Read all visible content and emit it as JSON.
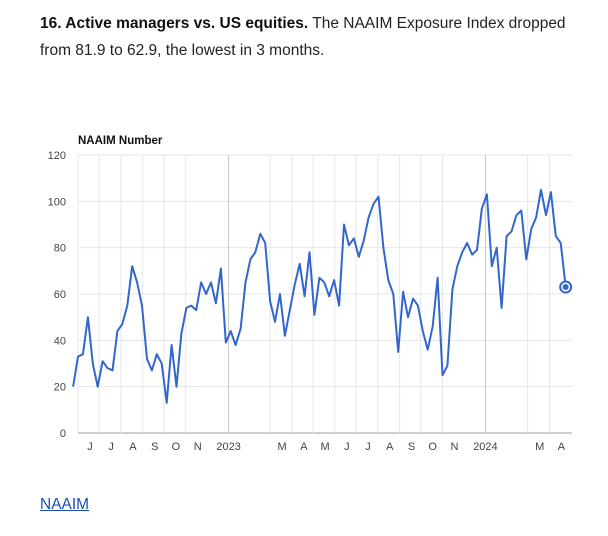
{
  "caption": {
    "bold": "16. Active managers vs. US equities.",
    "text": "The NAAIM Exposure Index dropped from 81.9 to 62.9, the lowest in 3 months."
  },
  "source_link": "NAAIM",
  "colors": {
    "line": "#3366cc",
    "grid": "#e6e6e6",
    "year_grid": "#c8c8c8",
    "axis_text": "#444444"
  },
  "chart_data": {
    "type": "line",
    "ylabel": "NAAIM Number",
    "ylim": [
      0,
      120
    ],
    "yticks": [
      0,
      20,
      40,
      60,
      80,
      100,
      120
    ],
    "x_start": "2022-06-01",
    "x_end": "2024-05-03",
    "xtick_labels": [
      {
        "date": "2022-06-01",
        "label": "J",
        "year": false
      },
      {
        "date": "2022-07-01",
        "label": "J",
        "year": false
      },
      {
        "date": "2022-08-01",
        "label": "A",
        "year": false
      },
      {
        "date": "2022-09-01",
        "label": "S",
        "year": false
      },
      {
        "date": "2022-10-01",
        "label": "O",
        "year": false
      },
      {
        "date": "2022-11-01",
        "label": "N",
        "year": false
      },
      {
        "date": "2023-01-01",
        "label": "2023",
        "year": true
      },
      {
        "date": "2023-03-01",
        "label": "M",
        "year": false
      },
      {
        "date": "2023-04-01",
        "label": "A",
        "year": false
      },
      {
        "date": "2023-05-01",
        "label": "M",
        "year": false
      },
      {
        "date": "2023-06-01",
        "label": "J",
        "year": false
      },
      {
        "date": "2023-07-01",
        "label": "J",
        "year": false
      },
      {
        "date": "2023-08-01",
        "label": "A",
        "year": false
      },
      {
        "date": "2023-09-01",
        "label": "S",
        "year": false
      },
      {
        "date": "2023-10-01",
        "label": "O",
        "year": false
      },
      {
        "date": "2023-11-01",
        "label": "N",
        "year": false
      },
      {
        "date": "2024-01-01",
        "label": "2024",
        "year": true
      },
      {
        "date": "2024-03-01",
        "label": "M",
        "year": false
      },
      {
        "date": "2024-04-01",
        "label": "A",
        "year": false
      }
    ],
    "series": [
      {
        "highlight_last_point": true,
        "values": [
          [
            "2022-05-25",
            20
          ],
          [
            "2022-06-01",
            33
          ],
          [
            "2022-06-08",
            34
          ],
          [
            "2022-06-15",
            50
          ],
          [
            "2022-06-22",
            30
          ],
          [
            "2022-06-29",
            20
          ],
          [
            "2022-07-06",
            31
          ],
          [
            "2022-07-13",
            28
          ],
          [
            "2022-07-20",
            27
          ],
          [
            "2022-07-27",
            44
          ],
          [
            "2022-08-03",
            47
          ],
          [
            "2022-08-10",
            55
          ],
          [
            "2022-08-17",
            72
          ],
          [
            "2022-08-24",
            65
          ],
          [
            "2022-08-31",
            55
          ],
          [
            "2022-09-07",
            32
          ],
          [
            "2022-09-14",
            27
          ],
          [
            "2022-09-21",
            34
          ],
          [
            "2022-09-28",
            30
          ],
          [
            "2022-10-05",
            13
          ],
          [
            "2022-10-12",
            38
          ],
          [
            "2022-10-19",
            20
          ],
          [
            "2022-10-26",
            43
          ],
          [
            "2022-11-02",
            54
          ],
          [
            "2022-11-09",
            55
          ],
          [
            "2022-11-16",
            53
          ],
          [
            "2022-11-23",
            65
          ],
          [
            "2022-11-30",
            60
          ],
          [
            "2022-12-07",
            65
          ],
          [
            "2022-12-14",
            56
          ],
          [
            "2022-12-21",
            71
          ],
          [
            "2022-12-28",
            39
          ],
          [
            "2023-01-04",
            44
          ],
          [
            "2023-01-11",
            38
          ],
          [
            "2023-01-18",
            45
          ],
          [
            "2023-01-25",
            65
          ],
          [
            "2023-02-01",
            75
          ],
          [
            "2023-02-08",
            78
          ],
          [
            "2023-02-15",
            86
          ],
          [
            "2023-02-22",
            82
          ],
          [
            "2023-03-01",
            57
          ],
          [
            "2023-03-08",
            48
          ],
          [
            "2023-03-15",
            60
          ],
          [
            "2023-03-22",
            42
          ],
          [
            "2023-03-29",
            53
          ],
          [
            "2023-04-05",
            64
          ],
          [
            "2023-04-12",
            73
          ],
          [
            "2023-04-19",
            59
          ],
          [
            "2023-04-26",
            78
          ],
          [
            "2023-05-03",
            51
          ],
          [
            "2023-05-10",
            67
          ],
          [
            "2023-05-17",
            65
          ],
          [
            "2023-05-24",
            59
          ],
          [
            "2023-05-31",
            66
          ],
          [
            "2023-06-07",
            55
          ],
          [
            "2023-06-14",
            90
          ],
          [
            "2023-06-21",
            81
          ],
          [
            "2023-06-28",
            84
          ],
          [
            "2023-07-05",
            76
          ],
          [
            "2023-07-12",
            83
          ],
          [
            "2023-07-19",
            93
          ],
          [
            "2023-07-26",
            99
          ],
          [
            "2023-08-02",
            102
          ],
          [
            "2023-08-09",
            80
          ],
          [
            "2023-08-16",
            66
          ],
          [
            "2023-08-23",
            60
          ],
          [
            "2023-08-30",
            35
          ],
          [
            "2023-09-06",
            61
          ],
          [
            "2023-09-13",
            50
          ],
          [
            "2023-09-20",
            58
          ],
          [
            "2023-09-27",
            55
          ],
          [
            "2023-10-04",
            44
          ],
          [
            "2023-10-11",
            36
          ],
          [
            "2023-10-18",
            46
          ],
          [
            "2023-10-25",
            67
          ],
          [
            "2023-11-01",
            25
          ],
          [
            "2023-11-08",
            29
          ],
          [
            "2023-11-15",
            62
          ],
          [
            "2023-11-22",
            72
          ],
          [
            "2023-11-29",
            78
          ],
          [
            "2023-12-06",
            82
          ],
          [
            "2023-12-13",
            77
          ],
          [
            "2023-12-20",
            79
          ],
          [
            "2023-12-27",
            97
          ],
          [
            "2024-01-03",
            103
          ],
          [
            "2024-01-10",
            72
          ],
          [
            "2024-01-17",
            80
          ],
          [
            "2024-01-24",
            54
          ],
          [
            "2024-01-31",
            85
          ],
          [
            "2024-02-07",
            87
          ],
          [
            "2024-02-14",
            94
          ],
          [
            "2024-02-21",
            96
          ],
          [
            "2024-02-28",
            75
          ],
          [
            "2024-03-06",
            88
          ],
          [
            "2024-03-13",
            93
          ],
          [
            "2024-03-20",
            105
          ],
          [
            "2024-03-27",
            94
          ],
          [
            "2024-04-03",
            104
          ],
          [
            "2024-04-10",
            85
          ],
          [
            "2024-04-17",
            82
          ],
          [
            "2024-04-24",
            63
          ]
        ]
      }
    ]
  }
}
